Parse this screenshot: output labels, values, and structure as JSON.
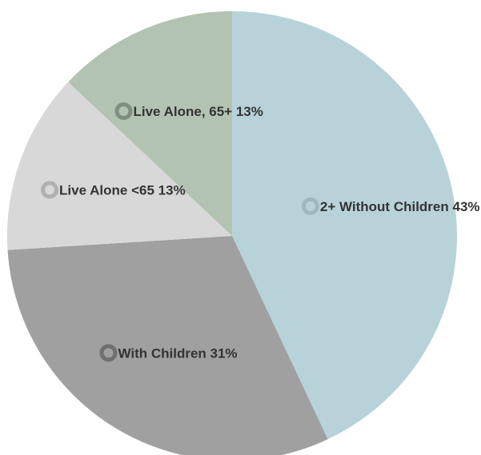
{
  "chart_data": {
    "type": "pie",
    "title": "",
    "slices": [
      {
        "label": "2+ Without Children",
        "value": 43,
        "display": "2+ Without Children 43%",
        "color": "#b7d3d9",
        "marker_color": "#9fb8bd"
      },
      {
        "label": "With Children",
        "value": 31,
        "display": "With Children 31%",
        "color": "#a0a0a0",
        "marker_color": "#6f6f6f"
      },
      {
        "label": "Live Alone <65",
        "value": 13,
        "display": "Live Alone <65 13%",
        "color": "#d8d8d8",
        "marker_color": "#b0b0b0"
      },
      {
        "label": "Live Alone, 65+",
        "value": 13,
        "display": "Live Alone, 65+ 13%",
        "color": "#b2c4b1",
        "marker_color": "#7f8f7e"
      }
    ],
    "start_angle_deg": 0,
    "direction": "clockwise",
    "legend": "none"
  }
}
